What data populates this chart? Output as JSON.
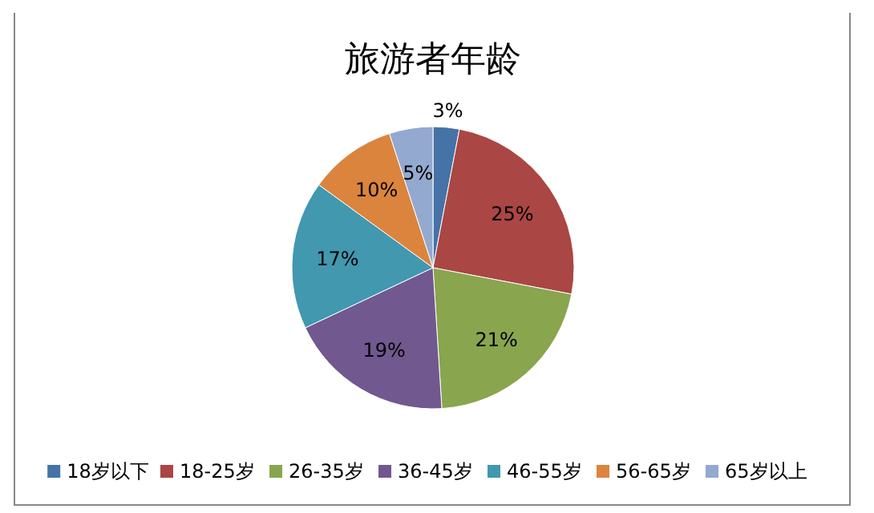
{
  "chart_data": {
    "type": "pie",
    "title": "旅游者年龄",
    "categories": [
      "18岁以下",
      "18-25岁",
      "26-35岁",
      "36-45岁",
      "46-55岁",
      "56-65岁",
      "65岁以上"
    ],
    "values": [
      3,
      25,
      21,
      19,
      17,
      10,
      5
    ],
    "value_labels": [
      "3%",
      "25%",
      "21%",
      "19%",
      "17%",
      "10%",
      "5%"
    ],
    "colors": [
      "#4572a7",
      "#aa4643",
      "#89a54e",
      "#71588f",
      "#4198af",
      "#db843d",
      "#93a9cf"
    ],
    "legend": "bottom"
  }
}
